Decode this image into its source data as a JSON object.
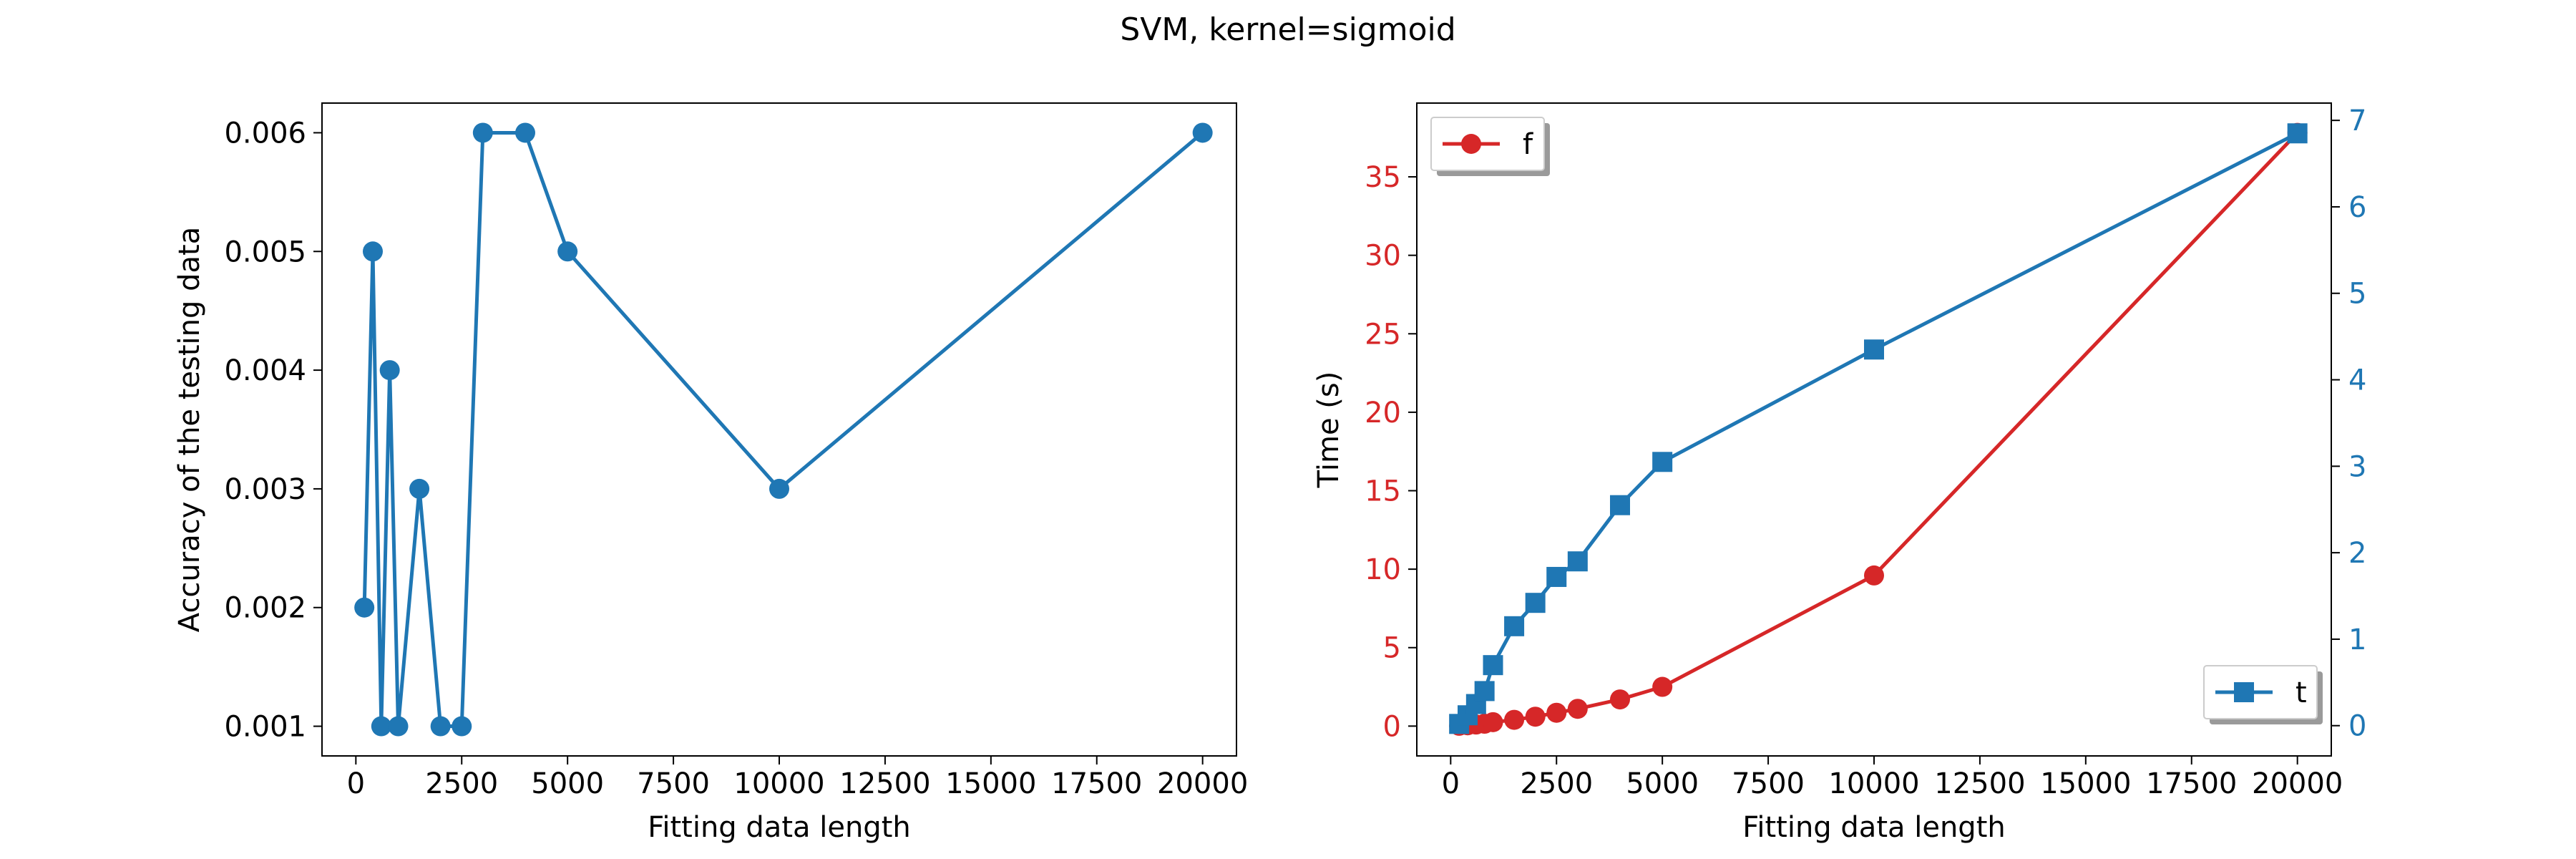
{
  "figure": {
    "title": "SVM, kernel=sigmoid"
  },
  "colors": {
    "blue": "#1f77b4",
    "red": "#d62728",
    "axis": "#000000"
  },
  "chart_data": [
    {
      "type": "line",
      "xlabel": "Fitting data length",
      "ylabel": "Accuracy of the testing data",
      "xlim": [
        -800,
        20800
      ],
      "ylim": [
        0.00075,
        0.00625
      ],
      "xticks": [
        0,
        2500,
        5000,
        7500,
        10000,
        12500,
        15000,
        17500,
        20000
      ],
      "yticks": [
        0.001,
        0.002,
        0.003,
        0.004,
        0.005,
        0.006
      ],
      "ytick_labels": [
        "0.001",
        "0.002",
        "0.003",
        "0.004",
        "0.005",
        "0.006"
      ],
      "marker": "circle",
      "series": [
        {
          "color": "#1f77b4",
          "x": [
            200,
            400,
            600,
            800,
            1000,
            1500,
            2000,
            2500,
            3000,
            4000,
            5000,
            10000,
            20000
          ],
          "y": [
            0.002,
            0.005,
            0.001,
            0.004,
            0.001,
            0.003,
            0.001,
            0.001,
            0.006,
            0.006,
            0.005,
            0.003,
            0.006
          ]
        }
      ]
    },
    {
      "type": "line",
      "xlabel": "Fitting data length",
      "ylabel": "Time (s)",
      "xlim": [
        -800,
        20800
      ],
      "ylim": [
        -1.9,
        39.7
      ],
      "y2lim": [
        -0.35,
        7.2
      ],
      "xticks": [
        0,
        2500,
        5000,
        7500,
        10000,
        12500,
        15000,
        17500,
        20000
      ],
      "yticks": [
        0,
        5,
        10,
        15,
        20,
        25,
        30,
        35
      ],
      "y2ticks": [
        0,
        1,
        2,
        3,
        4,
        5,
        6,
        7
      ],
      "legend_left": {
        "label": "f",
        "placement": "upper left"
      },
      "legend_right": {
        "label": "t",
        "placement": "lower right"
      },
      "series": [
        {
          "name": "f",
          "axis": "left",
          "color": "#d62728",
          "marker": "circle",
          "x": [
            200,
            400,
            600,
            800,
            1000,
            1500,
            2000,
            2500,
            3000,
            4000,
            5000,
            10000,
            20000
          ],
          "y": [
            0.02,
            0.05,
            0.1,
            0.15,
            0.25,
            0.4,
            0.6,
            0.85,
            1.1,
            1.7,
            2.5,
            9.6,
            37.8
          ]
        },
        {
          "name": "t",
          "axis": "right",
          "color": "#1f77b4",
          "marker": "square",
          "x": [
            200,
            400,
            600,
            800,
            1000,
            1500,
            2000,
            2500,
            3000,
            4000,
            5000,
            10000,
            20000
          ],
          "y": [
            0.02,
            0.12,
            0.25,
            0.4,
            0.7,
            1.15,
            1.42,
            1.72,
            1.9,
            2.55,
            3.05,
            4.35,
            6.85
          ]
        }
      ]
    }
  ]
}
